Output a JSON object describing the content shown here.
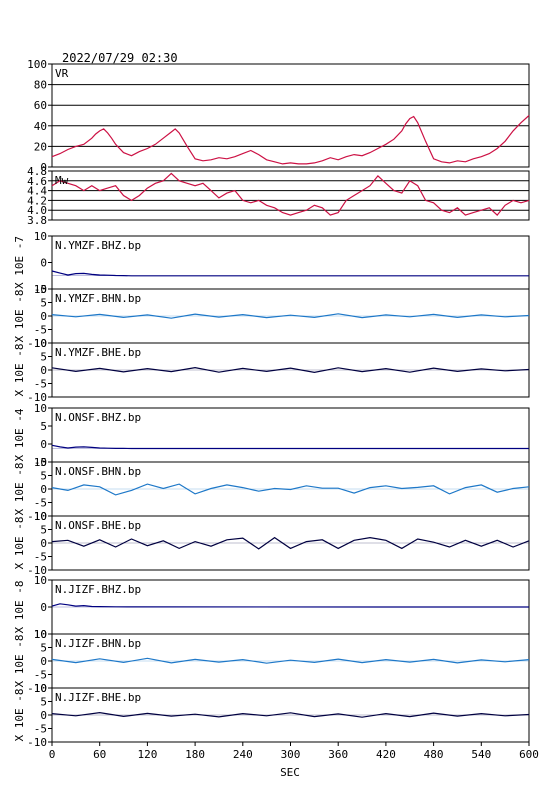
{
  "header": {
    "timestamp": "2022/07/29 02:30"
  },
  "colors": {
    "frame": "#000000",
    "vr_mw": "#cc1144",
    "bhz": "#000080",
    "bhn": "#1e78c8",
    "bhe": "#000040"
  },
  "x_axis": {
    "label": "SEC",
    "ticks": [
      "0",
      "60",
      "120",
      "180",
      "240",
      "300",
      "360",
      "420",
      "480",
      "540",
      "600"
    ],
    "range": [
      0,
      600
    ]
  },
  "chart_data": [
    {
      "type": "line",
      "id": "vr",
      "title": "VR",
      "ylim": [
        0,
        100
      ],
      "yticks": [
        "100",
        "80",
        "60",
        "40",
        "20",
        "0"
      ],
      "grid": true,
      "x": [
        0,
        10,
        20,
        30,
        40,
        50,
        55,
        60,
        65,
        70,
        75,
        80,
        90,
        100,
        110,
        120,
        130,
        140,
        150,
        155,
        160,
        170,
        180,
        190,
        200,
        210,
        220,
        230,
        240,
        250,
        260,
        270,
        280,
        290,
        300,
        310,
        320,
        330,
        340,
        350,
        360,
        370,
        380,
        390,
        400,
        410,
        420,
        430,
        440,
        445,
        450,
        455,
        460,
        470,
        480,
        490,
        500,
        510,
        520,
        530,
        540,
        550,
        560,
        570,
        580,
        590,
        600
      ],
      "y": [
        10,
        13,
        17,
        20,
        22,
        28,
        32,
        35,
        37,
        33,
        28,
        22,
        14,
        11,
        15,
        18,
        22,
        28,
        34,
        37,
        33,
        20,
        8,
        6,
        7,
        9,
        8,
        10,
        13,
        16,
        12,
        7,
        5,
        3,
        4,
        3,
        3,
        4,
        6,
        9,
        7,
        10,
        12,
        11,
        14,
        18,
        22,
        27,
        35,
        42,
        47,
        49,
        43,
        25,
        8,
        5,
        4,
        6,
        5,
        8,
        10,
        13,
        18,
        25,
        35,
        43,
        50
      ]
    },
    {
      "type": "line",
      "id": "mw",
      "title": "Mw",
      "ylim": [
        3.8,
        4.8
      ],
      "yticks": [
        "4.8",
        "4.6",
        "4.4",
        "4.2",
        "4.0",
        "3.8"
      ],
      "grid": true,
      "x": [
        0,
        10,
        20,
        30,
        40,
        50,
        60,
        70,
        80,
        90,
        100,
        110,
        120,
        130,
        140,
        150,
        160,
        170,
        180,
        190,
        200,
        210,
        220,
        230,
        240,
        250,
        260,
        270,
        280,
        290,
        300,
        310,
        320,
        330,
        340,
        350,
        360,
        370,
        380,
        390,
        400,
        410,
        420,
        430,
        440,
        450,
        460,
        470,
        480,
        490,
        500,
        510,
        520,
        530,
        540,
        550,
        560,
        570,
        580,
        590,
        600
      ],
      "y": [
        4.5,
        4.6,
        4.55,
        4.5,
        4.4,
        4.5,
        4.4,
        4.45,
        4.5,
        4.3,
        4.2,
        4.3,
        4.45,
        4.55,
        4.6,
        4.75,
        4.6,
        4.55,
        4.5,
        4.55,
        4.4,
        4.25,
        4.35,
        4.4,
        4.2,
        4.15,
        4.2,
        4.1,
        4.05,
        3.95,
        3.9,
        3.95,
        4.0,
        4.1,
        4.05,
        3.9,
        3.95,
        4.2,
        4.3,
        4.4,
        4.5,
        4.7,
        4.55,
        4.4,
        4.35,
        4.6,
        4.5,
        4.2,
        4.15,
        4.0,
        3.95,
        4.05,
        3.9,
        3.95,
        4.0,
        4.05,
        3.9,
        4.1,
        4.2,
        4.15,
        4.2
      ]
    },
    {
      "type": "line",
      "id": "ymzf_bhz",
      "title": "N.YMZF.BHZ.bp",
      "ylabel": "X 10E -7",
      "ylim": [
        -5,
        15
      ],
      "yticks": [
        "10",
        "0",
        "-5"
      ],
      "grid": false,
      "x": [
        0,
        10,
        20,
        30,
        40,
        50,
        60,
        70,
        80,
        90,
        100,
        600
      ],
      "y": [
        1.8,
        1.0,
        0.3,
        0.8,
        0.9,
        0.5,
        0.3,
        0.2,
        0.1,
        0.05,
        0,
        0
      ]
    },
    {
      "type": "line",
      "id": "ymzf_bhn",
      "title": "N.YMZF.BHN.bp",
      "ylabel": "X 10E -8",
      "ylim": [
        -10,
        10
      ],
      "yticks": [
        "10",
        "5",
        "0",
        "-5",
        "-10"
      ],
      "grid": false,
      "x": [
        0,
        30,
        60,
        90,
        120,
        150,
        180,
        210,
        240,
        270,
        300,
        330,
        360,
        390,
        420,
        450,
        480,
        510,
        540,
        570,
        600
      ],
      "y": [
        0.5,
        -0.3,
        0.6,
        -0.5,
        0.4,
        -0.8,
        0.7,
        -0.4,
        0.5,
        -0.6,
        0.3,
        -0.5,
        0.8,
        -0.6,
        0.4,
        -0.3,
        0.6,
        -0.5,
        0.4,
        -0.3,
        0.2
      ]
    },
    {
      "type": "line",
      "id": "ymzf_bhe",
      "title": "N.YMZF.BHE.bp",
      "ylabel": "X 10E -8",
      "ylim": [
        -10,
        10
      ],
      "yticks": [
        "10",
        "5",
        "0",
        "-5",
        "-10"
      ],
      "grid": false,
      "x": [
        0,
        30,
        60,
        90,
        120,
        150,
        180,
        210,
        240,
        270,
        300,
        330,
        360,
        390,
        420,
        450,
        480,
        510,
        540,
        570,
        600
      ],
      "y": [
        0.8,
        -0.5,
        0.6,
        -0.7,
        0.5,
        -0.6,
        0.9,
        -0.8,
        0.6,
        -0.5,
        0.7,
        -0.9,
        0.8,
        -0.6,
        0.5,
        -0.8,
        0.7,
        -0.5,
        0.4,
        -0.3,
        0.2
      ]
    },
    {
      "type": "line",
      "id": "onsf_bhz",
      "title": "N.ONSF.BHZ.bp",
      "ylabel": "X 10E -4",
      "ylim": [
        -5,
        15
      ],
      "yticks": [
        "10",
        "5",
        "0",
        "-5"
      ],
      "grid": false,
      "x": [
        0,
        10,
        20,
        30,
        40,
        50,
        60,
        70,
        80,
        90,
        100,
        600
      ],
      "y": [
        1.2,
        0.6,
        0.2,
        0.5,
        0.6,
        0.4,
        0.2,
        0.1,
        0.05,
        0.02,
        0,
        0
      ]
    },
    {
      "type": "line",
      "id": "onsf_bhn",
      "title": "N.ONSF.BHN.bp",
      "ylabel": "X 10E -8",
      "ylim": [
        -10,
        10
      ],
      "yticks": [
        "10",
        "5",
        "0",
        "-5",
        "-10"
      ],
      "grid": false,
      "x": [
        0,
        20,
        40,
        60,
        80,
        100,
        120,
        140,
        160,
        180,
        200,
        220,
        240,
        260,
        280,
        300,
        320,
        340,
        360,
        380,
        400,
        420,
        440,
        460,
        480,
        500,
        520,
        540,
        560,
        580,
        600
      ],
      "y": [
        0.5,
        -0.5,
        1.5,
        0.8,
        -2.2,
        -0.5,
        1.8,
        0.2,
        1.8,
        -1.8,
        0.2,
        1.5,
        0.5,
        -0.8,
        0.2,
        -0.2,
        1.2,
        0.3,
        0.3,
        -1.5,
        0.5,
        1.2,
        0.2,
        0.6,
        1.2,
        -1.8,
        0.5,
        1.5,
        -1.2,
        0.2,
        0.8
      ]
    },
    {
      "type": "line",
      "id": "onsf_bhe",
      "title": "N.ONSF.BHE.bp",
      "ylabel": "X 10E -8",
      "ylim": [
        -10,
        10
      ],
      "yticks": [
        "10",
        "5",
        "0",
        "-5",
        "-10"
      ],
      "grid": false,
      "x": [
        0,
        20,
        40,
        60,
        80,
        100,
        120,
        140,
        160,
        180,
        200,
        220,
        240,
        260,
        280,
        300,
        320,
        340,
        360,
        380,
        400,
        420,
        440,
        460,
        480,
        500,
        520,
        540,
        560,
        580,
        600
      ],
      "y": [
        0.5,
        1.0,
        -1.2,
        1.2,
        -1.5,
        1.5,
        -1.0,
        0.8,
        -2.0,
        0.5,
        -1.2,
        1.2,
        1.8,
        -2.2,
        2.0,
        -2.0,
        0.5,
        1.2,
        -2.0,
        1.0,
        2.0,
        1.0,
        -2.0,
        1.5,
        0.3,
        -1.5,
        1.0,
        -1.2,
        1.0,
        -1.5,
        0.8
      ]
    },
    {
      "type": "line",
      "id": "jizf_bhz",
      "title": "N.JIZF.BHZ.bp",
      "ylabel": "X 10E -8",
      "ylim": [
        -15,
        15
      ],
      "yticks": [
        "10",
        "0",
        "10"
      ],
      "grid": false,
      "x": [
        0,
        10,
        20,
        30,
        40,
        50,
        60,
        80,
        100,
        600
      ],
      "y": [
        0.5,
        1.8,
        1.2,
        0.5,
        0.8,
        0.3,
        0.2,
        0.1,
        0.05,
        0
      ]
    },
    {
      "type": "line",
      "id": "jizf_bhn",
      "title": "N.JIZF.BHN.bp",
      "ylabel": "X 10E -8",
      "ylim": [
        -10,
        10
      ],
      "yticks": [
        "10",
        "5",
        "0",
        "-5",
        "-10"
      ],
      "grid": false,
      "x": [
        0,
        30,
        60,
        90,
        120,
        150,
        180,
        210,
        240,
        270,
        300,
        330,
        360,
        390,
        420,
        450,
        480,
        510,
        540,
        570,
        600
      ],
      "y": [
        0.6,
        -0.6,
        0.8,
        -0.5,
        1.0,
        -0.7,
        0.6,
        -0.4,
        0.5,
        -0.8,
        0.3,
        -0.5,
        0.7,
        -0.6,
        0.5,
        -0.4,
        0.6,
        -0.7,
        0.4,
        -0.3,
        0.5
      ]
    },
    {
      "type": "line",
      "id": "jizf_bhe",
      "title": "N.JIZF.BHE.bp",
      "ylabel": "X 10E -8",
      "ylim": [
        -10,
        10
      ],
      "yticks": [
        "10",
        "5",
        "0",
        "-5",
        "-10"
      ],
      "grid": false,
      "x": [
        0,
        30,
        60,
        90,
        120,
        150,
        180,
        210,
        240,
        270,
        300,
        330,
        360,
        390,
        420,
        450,
        480,
        510,
        540,
        570,
        600
      ],
      "y": [
        0.5,
        -0.3,
        0.9,
        -0.5,
        0.6,
        -0.4,
        0.3,
        -0.7,
        0.5,
        -0.3,
        0.8,
        -0.6,
        0.4,
        -0.8,
        0.5,
        -0.6,
        0.7,
        -0.4,
        0.5,
        -0.3,
        0.2
      ]
    }
  ]
}
